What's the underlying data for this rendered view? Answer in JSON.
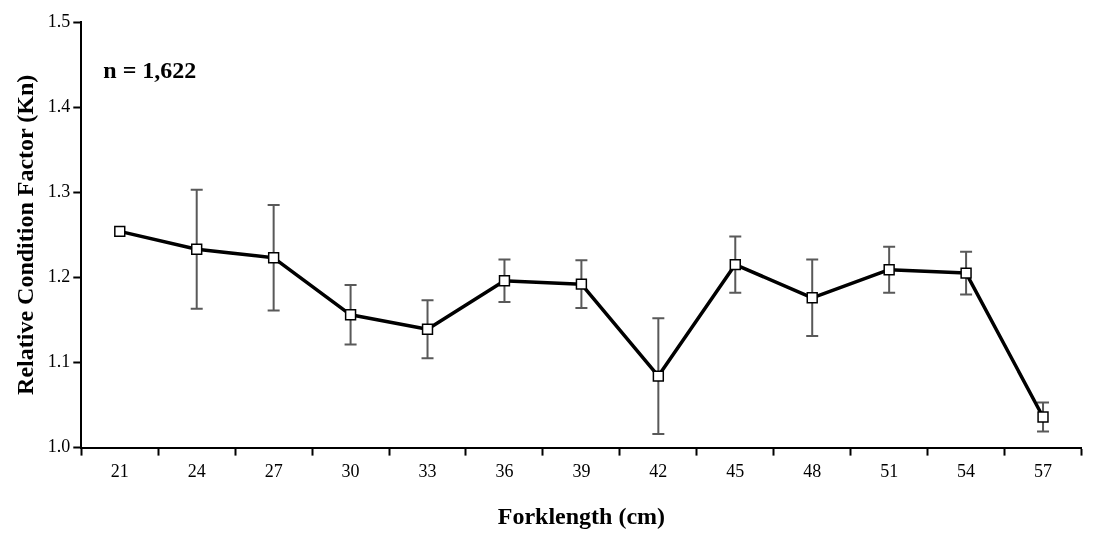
{
  "chart_data": {
    "type": "line",
    "xlabel": "Forklength (cm)",
    "ylabel": "Relative Condition Factor (Kn)",
    "annotations": [
      "n = 1,622"
    ],
    "categories": [
      "21",
      "24",
      "27",
      "30",
      "33",
      "36",
      "39",
      "42",
      "45",
      "48",
      "51",
      "54",
      "57"
    ],
    "series": [
      {
        "color": "#000000",
        "values": [
          1.254,
          1.233,
          1.223,
          1.156,
          1.139,
          1.196,
          1.192,
          1.084,
          1.215,
          1.176,
          1.209,
          1.205,
          1.036
        ],
        "errors": [
          null,
          0.07,
          0.062,
          0.035,
          0.034,
          0.025,
          0.028,
          0.068,
          0.033,
          0.045,
          0.027,
          0.025,
          0.017
        ]
      }
    ],
    "ylim": [
      1.0,
      1.5
    ],
    "yticks": [
      {
        "value": 1.0,
        "label": "1.0"
      },
      {
        "value": 1.1,
        "label": "1.1"
      },
      {
        "value": 1.2,
        "label": "1.2"
      },
      {
        "value": 1.3,
        "label": "1.3"
      },
      {
        "value": 1.4,
        "label": "1.4"
      },
      {
        "value": 1.5,
        "label": "1.5"
      }
    ],
    "grid": false,
    "legend": false,
    "marker": "square",
    "line_style": "solid"
  }
}
